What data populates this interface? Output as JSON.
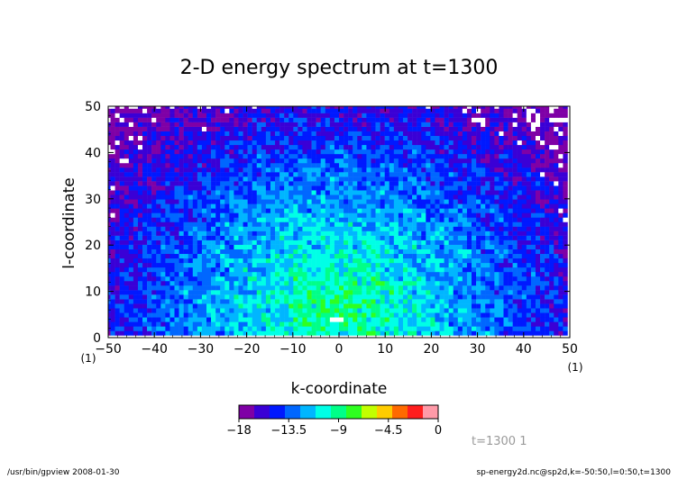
{
  "chart_data": {
    "type": "heatmap",
    "title": "2-D energy spectrum at t=1300",
    "xlabel": "k-coordinate",
    "ylabel": "l-coordinate",
    "xlim": [
      -50,
      50
    ],
    "ylim": [
      0,
      50
    ],
    "x_ticks": [
      -50,
      -40,
      -30,
      -20,
      -10,
      0,
      10,
      20,
      30,
      40,
      50
    ],
    "y_ticks": [
      0,
      10,
      20,
      30,
      40,
      50
    ],
    "x_tick_labels": [
      "-50",
      "-40",
      "-30",
      "-20",
      "-10",
      "0",
      "10",
      "20",
      "30",
      "40",
      "50"
    ],
    "y_tick_labels": [
      "0",
      "10",
      "20",
      "30",
      "40",
      "50"
    ],
    "x_index_label_left": "(1)",
    "x_index_label_right": "(1)",
    "colorbar": {
      "levels": [
        -18,
        -16.5,
        -15,
        -13.5,
        -12,
        -10.5,
        -9,
        -7.5,
        -6,
        -4.5,
        -3,
        -1.5,
        0
      ],
      "labels": [
        "-18",
        "-13.5",
        "-9",
        "-4.5",
        "0"
      ],
      "colors": [
        "#7f00a6",
        "#3a00d6",
        "#0019ff",
        "#0067ff",
        "#00b6ff",
        "#00ffe6",
        "#00ff88",
        "#2eff20",
        "#c2ff00",
        "#ffcc00",
        "#ff6a00",
        "#ff1e1e",
        "#ff9aa8"
      ]
    },
    "field_description": "log energy, peak near (k=0,l=5) about -7.5, decreasing outward to about -18 at corners",
    "grid": false
  },
  "annotation": "t=1300  1",
  "footer": {
    "left": "/usr/bin/gpview   2008-01-30",
    "right": "sp-energy2d.nc@sp2d,k=-50:50,l=0:50,t=1300"
  },
  "colors": {
    "frame": "#000000",
    "annotation": "#9a9a9a",
    "background": "#ffffff"
  }
}
